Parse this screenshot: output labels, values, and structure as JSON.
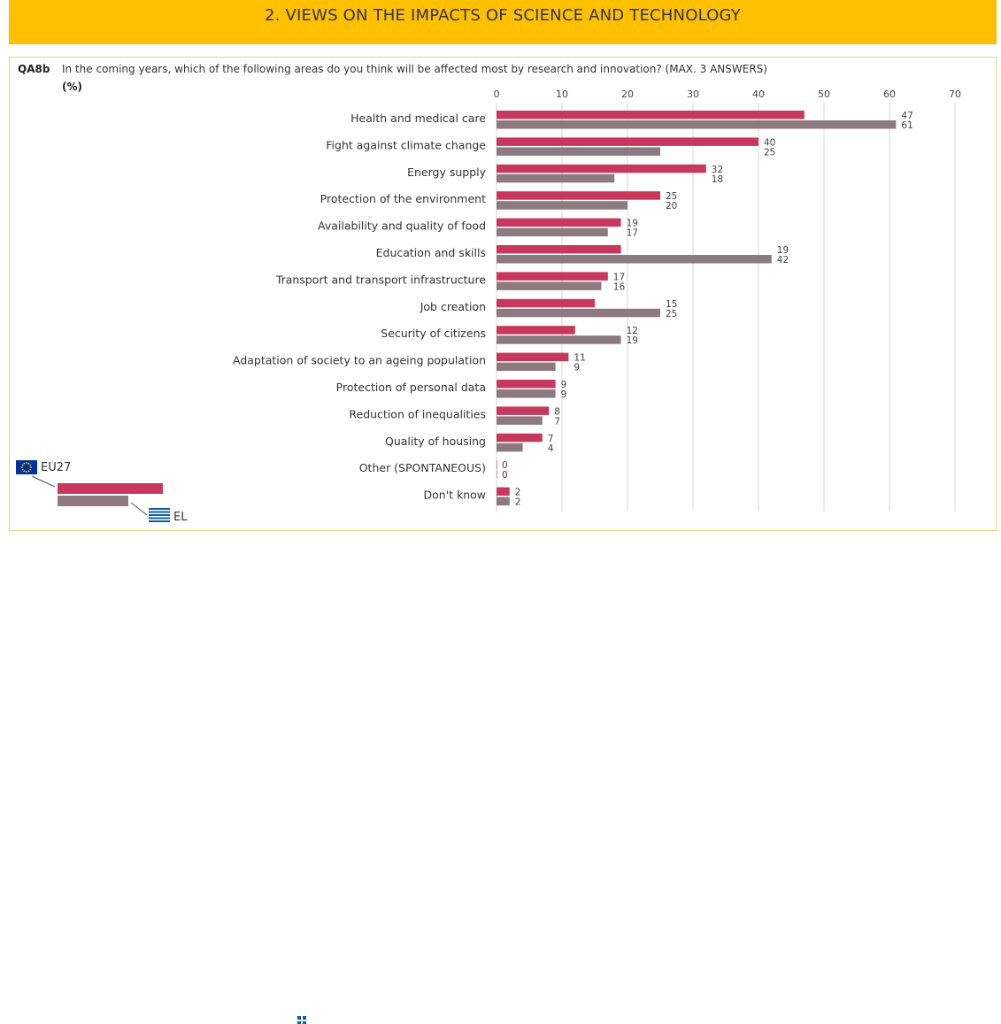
{
  "header": {
    "title": "2. VIEWS ON THE IMPACTS OF SCIENCE AND TECHNOLOGY"
  },
  "question": {
    "code": "QA8b",
    "text": "In the coming years, which of the following areas do you think will be affected most by research and innovation? (MAX. 3 ANSWERS)",
    "unit": "(%)"
  },
  "legend": {
    "eu_label": "EU27",
    "el_label": "EL"
  },
  "colors": {
    "header": "#FFC000",
    "eu27": "#C8385C",
    "el": "#8C7A80",
    "grid": "#D9D9D9"
  },
  "chart_data": {
    "type": "bar",
    "orientation": "horizontal",
    "xlim": [
      0,
      70
    ],
    "ticks": [
      0,
      10,
      20,
      30,
      40,
      50,
      60,
      70
    ],
    "grid": true,
    "categories": [
      "Health and medical care",
      "Fight against climate change",
      "Energy supply",
      "Protection of the environment",
      "Availability and quality of food",
      "Education and skills",
      "Transport and transport infrastructure",
      "Job creation",
      "Security of citizens",
      "Adaptation of society to an ageing population",
      "Protection of personal data",
      "Reduction of inequalities",
      "Quality of housing",
      "Other (SPONTANEOUS)",
      "Don't know"
    ],
    "series": [
      {
        "name": "EU27",
        "values": [
          47,
          40,
          32,
          25,
          19,
          19,
          17,
          15,
          12,
          11,
          9,
          8,
          7,
          0,
          2
        ]
      },
      {
        "name": "EL",
        "values": [
          61,
          25,
          18,
          20,
          17,
          42,
          16,
          25,
          19,
          9,
          9,
          7,
          4,
          0,
          2
        ]
      }
    ]
  }
}
